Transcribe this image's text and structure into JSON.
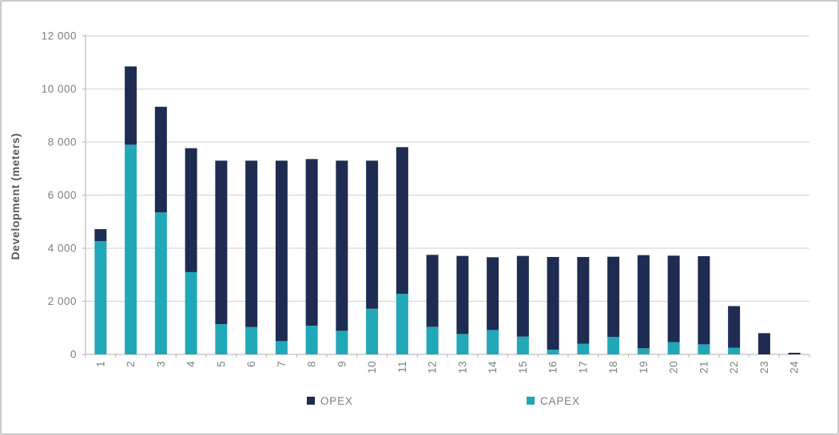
{
  "window": {
    "background": "#ffffff",
    "border_color": "#cbcbcb"
  },
  "chart_data": {
    "type": "bar",
    "variant": "stacked-vertical-column",
    "title": "",
    "xlabel": "",
    "ylabel": "Development (meters)",
    "categories": [
      "1",
      "2",
      "3",
      "4",
      "5",
      "6",
      "7",
      "8",
      "9",
      "10",
      "11",
      "12",
      "13",
      "14",
      "15",
      "16",
      "17",
      "18",
      "19",
      "20",
      "21",
      "22",
      "23",
      "24"
    ],
    "series": [
      {
        "name": "CAPEX",
        "color": "#21a8b8",
        "stack_position": "bottom",
        "values": [
          4270,
          7900,
          5350,
          3100,
          1140,
          1030,
          500,
          1080,
          890,
          1720,
          2280,
          1040,
          770,
          920,
          670,
          180,
          400,
          660,
          230,
          460,
          380,
          250,
          0,
          0
        ]
      },
      {
        "name": "OPEX",
        "color": "#1f2c51",
        "stack_position": "top",
        "values": [
          450,
          2950,
          3980,
          4670,
          6160,
          6270,
          6800,
          6280,
          6410,
          5580,
          5530,
          2710,
          2940,
          2740,
          3040,
          3490,
          3270,
          3020,
          3510,
          3260,
          3320,
          1570,
          800,
          60
        ]
      }
    ],
    "stack_totals": [
      4720,
      10850,
      9330,
      7770,
      7300,
      7300,
      7300,
      7360,
      7300,
      7300,
      7810,
      3750,
      3710,
      3660,
      3710,
      3670,
      3670,
      3680,
      3740,
      3720,
      3700,
      1820,
      800,
      60
    ],
    "ylim": [
      0,
      12000
    ],
    "ytick_step": 2000,
    "ytick_labels": [
      "0",
      "2 000",
      "4 000",
      "6 000",
      "8 000",
      "10 000",
      "12 000"
    ],
    "xtick_label_rotation_deg": -90,
    "grid": "horizontal",
    "legend": {
      "position": "bottom",
      "entries_order": [
        "OPEX",
        "CAPEX"
      ]
    },
    "colors": {
      "gridline": "#d9d9d9",
      "axis_line": "#bfbfbf",
      "tick_label": "#7f7f7f",
      "axis_title": "#595959",
      "legend_text": "#7f7f7f"
    }
  }
}
